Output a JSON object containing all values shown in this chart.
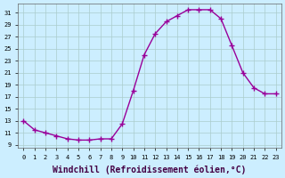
{
  "x": [
    0,
    1,
    2,
    3,
    4,
    5,
    6,
    7,
    8,
    9,
    10,
    11,
    12,
    13,
    14,
    15,
    16,
    17,
    18,
    19,
    20,
    21,
    22,
    23
  ],
  "y": [
    13,
    11.5,
    11,
    10.5,
    10,
    9.8,
    9.8,
    10,
    10,
    12.5,
    18,
    24,
    27.5,
    29.5,
    30.5,
    31.5,
    31.5,
    31.5,
    30,
    25.5,
    21,
    18.5,
    17.5,
    17.5
  ],
  "line_color": "#990099",
  "marker": "+",
  "marker_size": 4,
  "bg_color": "#cceeff",
  "grid_color": "#aacccc",
  "xlabel": "Windchill (Refroidissement éolien,°C)",
  "xlabel_fontsize": 7,
  "ylabel_ticks": [
    9,
    11,
    13,
    15,
    17,
    19,
    21,
    23,
    25,
    27,
    29,
    31
  ],
  "xlim": [
    -0.5,
    23.5
  ],
  "ylim": [
    8.5,
    32.5
  ],
  "xtick_labels": [
    "0",
    "1",
    "2",
    "3",
    "4",
    "5",
    "6",
    "7",
    "8",
    "9",
    "10",
    "11",
    "12",
    "13",
    "14",
    "15",
    "16",
    "17",
    "18",
    "19",
    "20",
    "21",
    "22",
    "23"
  ]
}
